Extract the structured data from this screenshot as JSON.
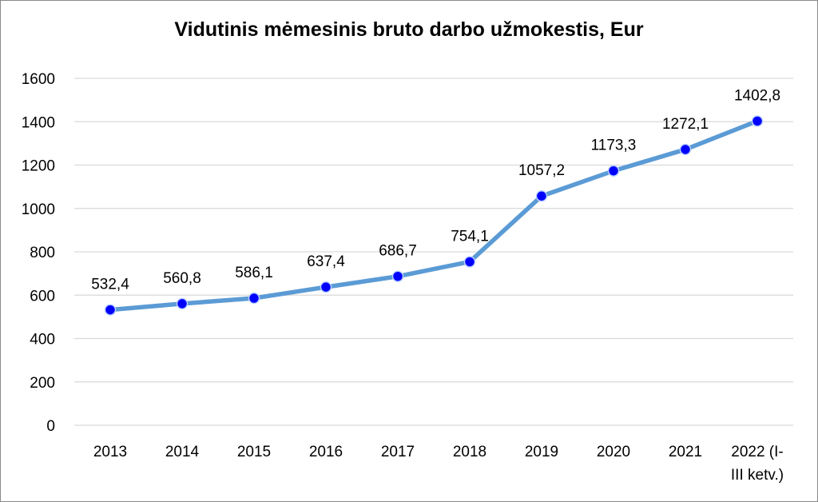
{
  "chart_data": {
    "type": "line",
    "title": "Vidutinis mėmesinis bruto darbo užmokestis, Eur",
    "categories": [
      "2013",
      "2014",
      "2015",
      "2016",
      "2017",
      "2018",
      "2019",
      "2020",
      "2021",
      "2022 (I-III ketv.)"
    ],
    "category_lines": [
      [
        "2013"
      ],
      [
        "2014"
      ],
      [
        "2015"
      ],
      [
        "2016"
      ],
      [
        "2017"
      ],
      [
        "2018"
      ],
      [
        "2019"
      ],
      [
        "2020"
      ],
      [
        "2021"
      ],
      [
        "2022 (I-",
        "III ketv.)"
      ]
    ],
    "values": [
      532.4,
      560.8,
      586.1,
      637.4,
      686.7,
      754.1,
      1057.2,
      1173.3,
      1272.1,
      1402.8
    ],
    "data_labels": [
      "532,4",
      "560,8",
      "586,1",
      "637,4",
      "686,7",
      "754,1",
      "1057,2",
      "1173,3",
      "1272,1",
      "1402,8"
    ],
    "ylim": [
      0,
      1600
    ],
    "yticks": [
      0,
      200,
      400,
      600,
      800,
      1000,
      1200,
      1400,
      1600
    ],
    "grid": true,
    "legend": "none",
    "colors": {
      "line": "#5b9bd5",
      "marker": "#0000ff",
      "gridline": "#d9d9d9"
    }
  }
}
